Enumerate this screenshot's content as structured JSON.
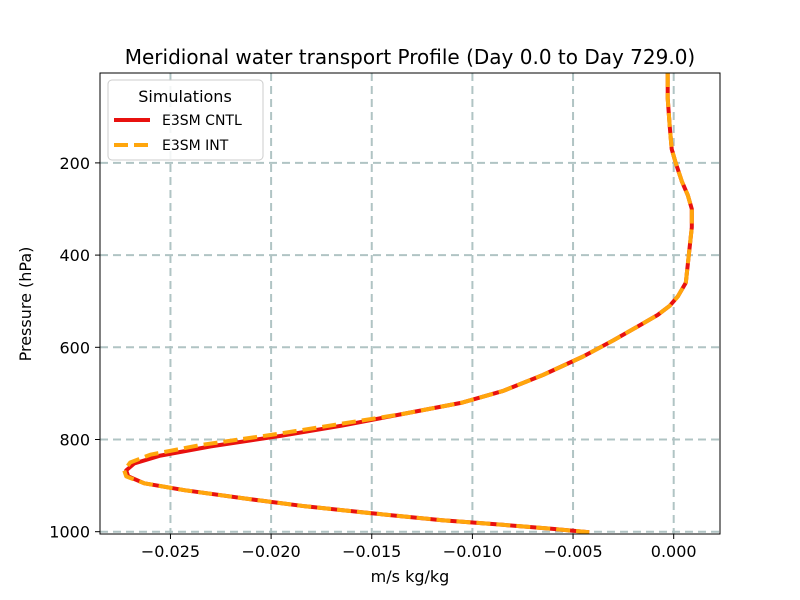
{
  "chart_data": {
    "type": "line",
    "title": "Meridional water transport Profile (Day 0.0 to Day 729.0)",
    "xlabel": "m/s kg/kg",
    "ylabel": "Pressure (hPa)",
    "xlim": [
      -0.0285,
      0.0023
    ],
    "ylim": [
      1005,
      5
    ],
    "y_inverted": true,
    "grid": true,
    "x_ticks": [
      -0.025,
      -0.02,
      -0.015,
      -0.01,
      -0.005,
      0.0
    ],
    "x_tick_labels": [
      "−0.025",
      "−0.020",
      "−0.015",
      "−0.010",
      "−0.005",
      "0.000"
    ],
    "y_ticks": [
      200,
      400,
      600,
      800,
      1000
    ],
    "y_tick_labels": [
      "200",
      "400",
      "600",
      "800",
      "1000"
    ],
    "legend": {
      "title": "Simulations",
      "position": "top-left"
    },
    "series": [
      {
        "name": "E3SM CNTL",
        "color": "#e8110f",
        "style": "solid",
        "points": [
          [
            -0.0003,
            5
          ],
          [
            -0.0003,
            60
          ],
          [
            -0.0002,
            120
          ],
          [
            -0.0001,
            170
          ],
          [
            0.0001,
            200
          ],
          [
            0.0004,
            240
          ],
          [
            0.0007,
            270
          ],
          [
            0.0009,
            300
          ],
          [
            0.0009,
            340
          ],
          [
            0.0008,
            380
          ],
          [
            0.0007,
            420
          ],
          [
            0.0006,
            460
          ],
          [
            0.0002,
            490
          ],
          [
            -0.0002,
            510
          ],
          [
            -0.0008,
            530
          ],
          [
            -0.0018,
            555
          ],
          [
            -0.003,
            585
          ],
          [
            -0.0045,
            620
          ],
          [
            -0.0065,
            660
          ],
          [
            -0.0085,
            695
          ],
          [
            -0.0105,
            720
          ],
          [
            -0.0135,
            745
          ],
          [
            -0.0165,
            770
          ],
          [
            -0.0195,
            792
          ],
          [
            -0.023,
            815
          ],
          [
            -0.0255,
            835
          ],
          [
            -0.0268,
            852
          ],
          [
            -0.0272,
            867
          ],
          [
            -0.0271,
            880
          ],
          [
            -0.0263,
            895
          ],
          [
            -0.0243,
            910
          ],
          [
            -0.0213,
            928
          ],
          [
            -0.0183,
            945
          ],
          [
            -0.015,
            960
          ],
          [
            -0.0115,
            975
          ],
          [
            -0.0085,
            985
          ],
          [
            -0.006,
            994
          ],
          [
            -0.0042,
            1001
          ]
        ]
      },
      {
        "name": "E3SM INT",
        "color": "#ffa60c",
        "style": "dashed",
        "points": [
          [
            -0.0003,
            5
          ],
          [
            -0.0003,
            60
          ],
          [
            -0.0002,
            120
          ],
          [
            -0.0001,
            170
          ],
          [
            0.0001,
            200
          ],
          [
            0.0004,
            240
          ],
          [
            0.0007,
            270
          ],
          [
            0.0009,
            300
          ],
          [
            0.0009,
            340
          ],
          [
            0.0008,
            380
          ],
          [
            0.0007,
            420
          ],
          [
            0.0006,
            460
          ],
          [
            0.0002,
            490
          ],
          [
            -0.0002,
            510
          ],
          [
            -0.0008,
            530
          ],
          [
            -0.0018,
            555
          ],
          [
            -0.003,
            585
          ],
          [
            -0.0045,
            620
          ],
          [
            -0.0065,
            660
          ],
          [
            -0.0085,
            695
          ],
          [
            -0.0105,
            720
          ],
          [
            -0.0135,
            745
          ],
          [
            -0.0168,
            768
          ],
          [
            -0.02,
            790
          ],
          [
            -0.0235,
            812
          ],
          [
            -0.026,
            833
          ],
          [
            -0.027,
            850
          ],
          [
            -0.0273,
            867
          ],
          [
            -0.0272,
            880
          ],
          [
            -0.0263,
            895
          ],
          [
            -0.0243,
            910
          ],
          [
            -0.0213,
            928
          ],
          [
            -0.0183,
            945
          ],
          [
            -0.015,
            960
          ],
          [
            -0.0115,
            975
          ],
          [
            -0.0085,
            985
          ],
          [
            -0.006,
            994
          ],
          [
            -0.0042,
            1001
          ]
        ]
      }
    ]
  }
}
